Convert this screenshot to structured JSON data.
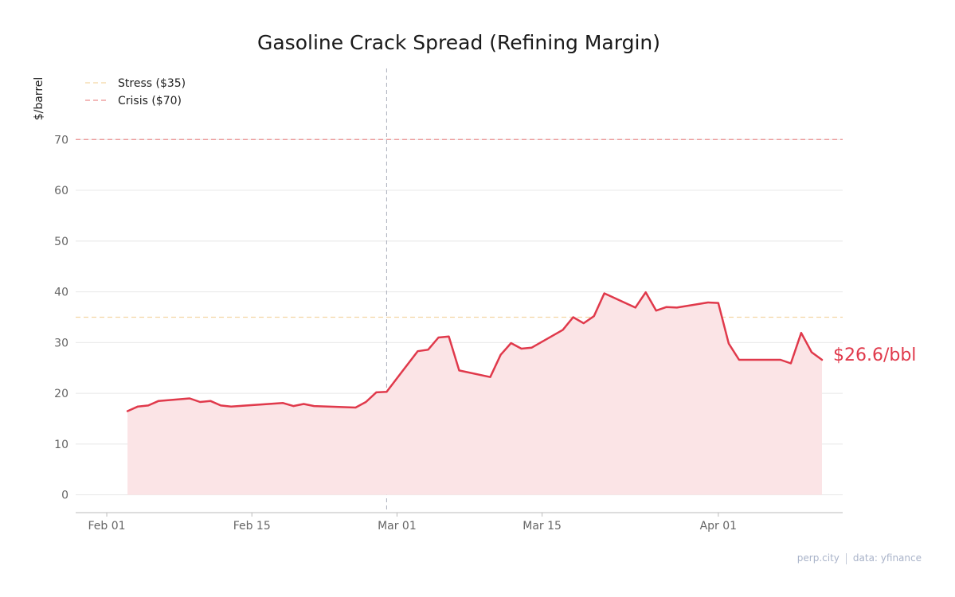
{
  "chart_data": {
    "type": "area",
    "title": "Gasoline Crack Spread (Refining Margin)",
    "ylabel": "$/barrel",
    "xlabel": "",
    "xlim": [
      "2026-01-29",
      "2026-04-13"
    ],
    "ylim": [
      -3.5,
      84
    ],
    "yticks": [
      0,
      10,
      20,
      30,
      40,
      50,
      60,
      70
    ],
    "xticks": [
      {
        "date": "2026-02-01",
        "label": "Feb 01"
      },
      {
        "date": "2026-02-15",
        "label": "Feb 15"
      },
      {
        "date": "2026-03-01",
        "label": "Mar 01"
      },
      {
        "date": "2026-03-15",
        "label": "Mar 15"
      },
      {
        "date": "2026-04-01",
        "label": "Apr 01"
      }
    ],
    "grid": true,
    "legend_position": "top-left",
    "vertical_marker": {
      "date": "2026-02-28"
    },
    "thresholds": [
      {
        "name": "Stress ($35)",
        "value": 35,
        "color": "#f3d6a3"
      },
      {
        "name": "Crisis ($70)",
        "value": 70,
        "color": "#ec8f8f"
      }
    ],
    "series": [
      {
        "color": "#e0394b",
        "fill": "#fbe4e6",
        "points": [
          [
            "2026-02-03",
            16.5
          ],
          [
            "2026-02-04",
            17.4
          ],
          [
            "2026-02-05",
            17.6
          ],
          [
            "2026-02-06",
            18.5
          ],
          [
            "2026-02-09",
            19.0
          ],
          [
            "2026-02-10",
            18.3
          ],
          [
            "2026-02-11",
            18.5
          ],
          [
            "2026-02-12",
            17.6
          ],
          [
            "2026-02-13",
            17.4
          ],
          [
            "2026-02-18",
            18.1
          ],
          [
            "2026-02-19",
            17.5
          ],
          [
            "2026-02-20",
            17.9
          ],
          [
            "2026-02-21",
            17.5
          ],
          [
            "2026-02-25",
            17.2
          ],
          [
            "2026-02-26",
            18.3
          ],
          [
            "2026-02-27",
            20.2
          ],
          [
            "2026-02-28",
            20.3
          ],
          [
            "2026-03-03",
            28.3
          ],
          [
            "2026-03-04",
            28.6
          ],
          [
            "2026-03-05",
            31.0
          ],
          [
            "2026-03-06",
            31.2
          ],
          [
            "2026-03-07",
            24.5
          ],
          [
            "2026-03-10",
            23.2
          ],
          [
            "2026-03-11",
            27.6
          ],
          [
            "2026-03-12",
            29.9
          ],
          [
            "2026-03-13",
            28.8
          ],
          [
            "2026-03-14",
            29.0
          ],
          [
            "2026-03-17",
            32.5
          ],
          [
            "2026-03-18",
            35.0
          ],
          [
            "2026-03-19",
            33.8
          ],
          [
            "2026-03-20",
            35.2
          ],
          [
            "2026-03-21",
            39.7
          ],
          [
            "2026-03-24",
            36.9
          ],
          [
            "2026-03-25",
            39.9
          ],
          [
            "2026-03-26",
            36.3
          ],
          [
            "2026-03-27",
            37.0
          ],
          [
            "2026-03-28",
            36.9
          ],
          [
            "2026-03-31",
            37.9
          ],
          [
            "2026-04-01",
            37.8
          ],
          [
            "2026-04-02",
            29.8
          ],
          [
            "2026-04-03",
            26.6
          ],
          [
            "2026-04-07",
            26.6
          ],
          [
            "2026-04-08",
            25.9
          ],
          [
            "2026-04-09",
            31.9
          ],
          [
            "2026-04-10",
            28.1
          ],
          [
            "2026-04-11",
            26.6
          ]
        ]
      }
    ],
    "last_value_label": "$26.6/bbl"
  },
  "footer": {
    "source": "perp.city",
    "credit": "data: yfinance"
  }
}
